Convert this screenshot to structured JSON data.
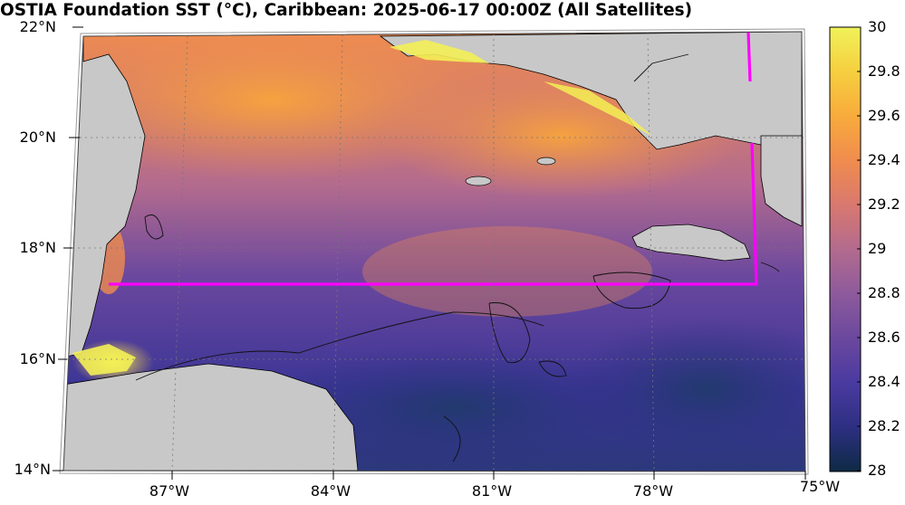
{
  "title": "OSTIA Foundation SST (°C), Caribbean: 2025-06-17 00:00Z (All Satellites)",
  "map": {
    "latitude_labels": [
      "22°N",
      "20°N",
      "18°N",
      "16°N",
      "14°N"
    ],
    "longitude_labels": [
      "87°W",
      "84°W",
      "81°W",
      "78°W",
      "75°W"
    ],
    "boundary_color": "#ff00ff",
    "land_color": "#c8c8c8"
  },
  "colorbar": {
    "ticks": [
      "30",
      "29.8",
      "29.6",
      "29.4",
      "29.2",
      "29",
      "28.8",
      "28.6",
      "28.4",
      "28.2",
      "28"
    ],
    "min": 28,
    "max": 30,
    "colors": [
      "#0e2a45",
      "#2d2f82",
      "#4a3aa0",
      "#6b489e",
      "#8d5a9c",
      "#b36b8e",
      "#d9786f",
      "#f08c4e",
      "#f8ab3c",
      "#f6cf3f",
      "#f0f25a"
    ]
  }
}
